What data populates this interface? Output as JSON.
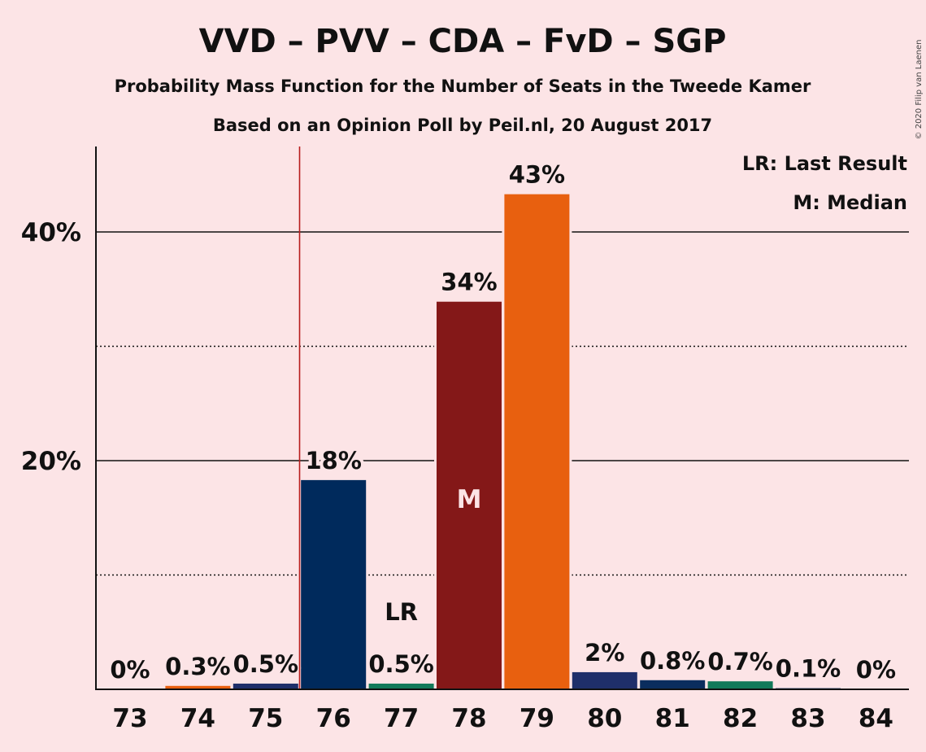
{
  "chart_data": {
    "type": "bar",
    "title": "VVD – PVV – CDA – FvD – SGP",
    "subtitle": "Probability Mass Function for the Number of Seats in the Tweede Kamer",
    "subtitle2": "Based on an Opinion Poll by Peil.nl, 20 August 2017",
    "copyright": "© 2020 Filip van Laenen",
    "categories": [
      "73",
      "74",
      "75",
      "76",
      "77",
      "78",
      "79",
      "80",
      "81",
      "82",
      "83",
      "84"
    ],
    "values": [
      0.0,
      0.3,
      0.5,
      18.3,
      0.5,
      33.9,
      43.3,
      1.5,
      0.8,
      0.7,
      0.1,
      0.0
    ],
    "labels": [
      "0%",
      "0.3%",
      "0.5%",
      "18%",
      "0.5%",
      "34%",
      "43%",
      "2%",
      "0.8%",
      "0.7%",
      "0.1%",
      "0%"
    ],
    "colors": [
      "#0a2d5e",
      "#e8600f",
      "#1f2f6a",
      "#002a5c",
      "#127a5a",
      "#841818",
      "#e8600f",
      "#1f2f6a",
      "#0a2d5e",
      "#127a5a",
      "#0a2d5e",
      "#0a2d5e"
    ],
    "ylim": [
      0,
      47
    ],
    "yticks": [
      {
        "value": 20,
        "label": "20%"
      },
      {
        "value": 40,
        "label": "40%"
      }
    ],
    "minor_gridlines": [
      10,
      30
    ],
    "last_result_seat": "77",
    "last_result_marker": "LR",
    "last_result_line_after": "75",
    "median_seat": "78",
    "median_marker": "M",
    "legend": {
      "position": "top-right",
      "entries": [
        "LR: Last Result",
        "M: Median"
      ]
    }
  }
}
